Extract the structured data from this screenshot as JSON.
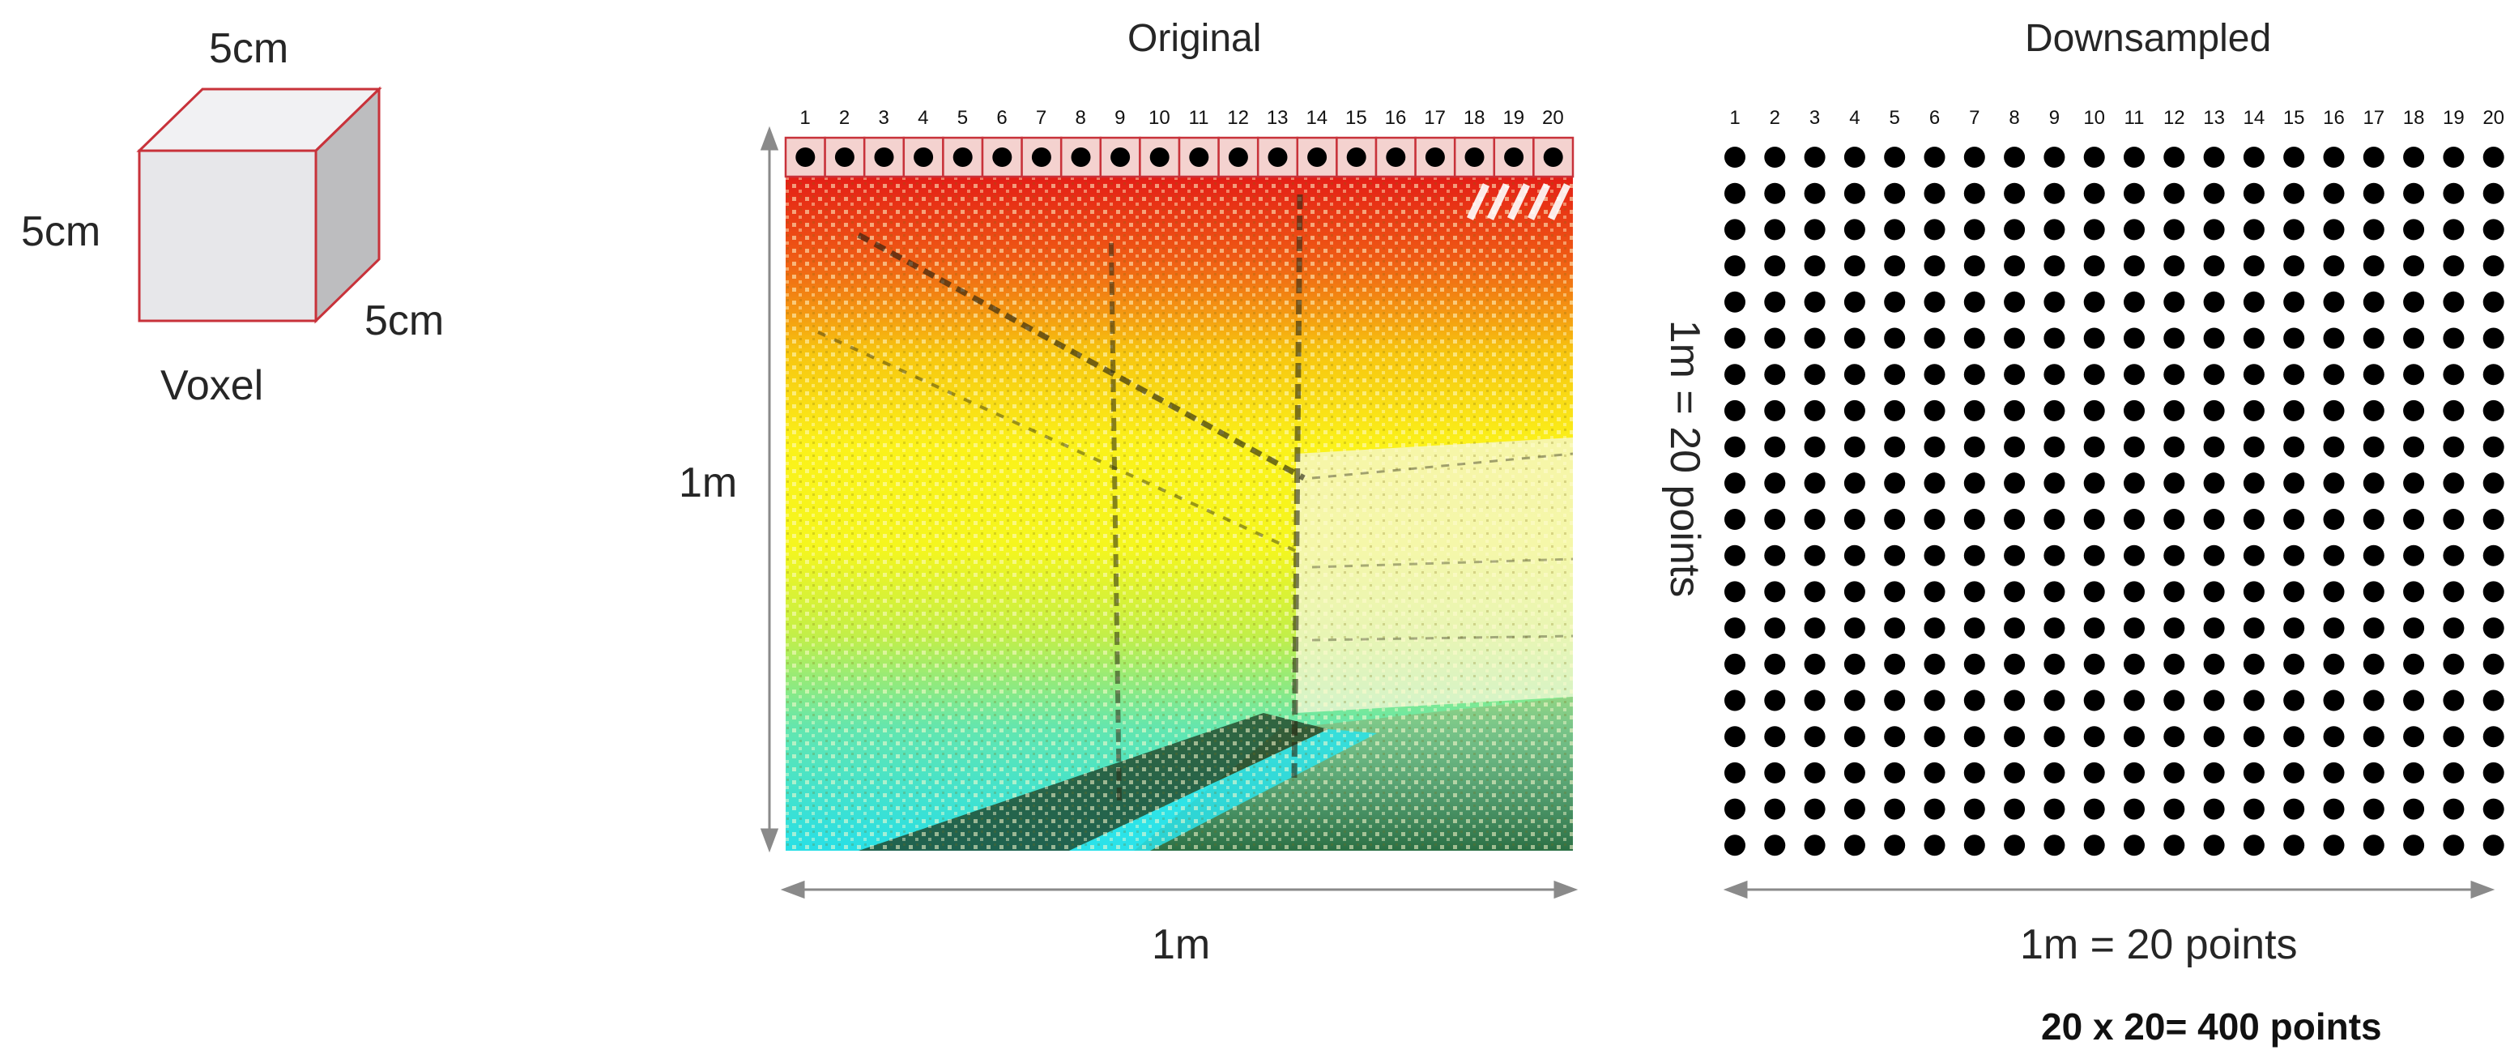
{
  "voxel": {
    "top_label": "5cm",
    "left_label": "5cm",
    "right_label": "5cm",
    "caption": "Voxel",
    "colors": {
      "front": "#e7e7ea",
      "top": "#f1f1f3",
      "side": "#bdbdbf",
      "edge": "#c8323a"
    }
  },
  "original": {
    "title": "Original",
    "height_label": "1m",
    "width_label": "1m",
    "column_numbers": [
      "1",
      "2",
      "3",
      "4",
      "5",
      "6",
      "7",
      "8",
      "9",
      "10",
      "11",
      "12",
      "13",
      "14",
      "15",
      "16",
      "17",
      "18",
      "19",
      "20"
    ],
    "header_cell_color": "#f4d2cf",
    "header_border_color": "#c8323a"
  },
  "downsampled": {
    "title": "Downsampled",
    "height_label": "1m = 20 points",
    "width_label": "1m = 20 points",
    "column_numbers": [
      "1",
      "2",
      "3",
      "4",
      "5",
      "6",
      "7",
      "8",
      "9",
      "10",
      "11",
      "12",
      "13",
      "14",
      "15",
      "16",
      "17",
      "18",
      "19",
      "20"
    ],
    "grid": {
      "rows": 20,
      "columns": 20
    }
  },
  "summary": "20 x 20= 400 points"
}
